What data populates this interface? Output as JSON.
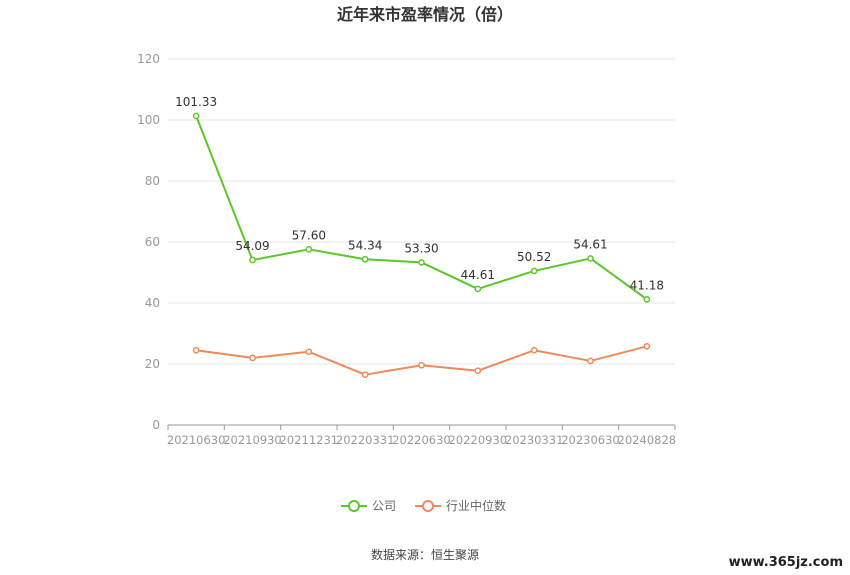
{
  "chart_data": {
    "type": "line",
    "title": "近年来市盈率情况（倍）",
    "categories": [
      "20210630",
      "20210930",
      "20211231",
      "20220331",
      "20220630",
      "20220930",
      "20230331",
      "20230630",
      "20240828"
    ],
    "ylim": [
      0,
      120
    ],
    "yticks": [
      0,
      20,
      40,
      60,
      80,
      100,
      120
    ],
    "grid": true,
    "legend": "bottom-center",
    "series": [
      {
        "name": "公司",
        "color": "#5ac72a",
        "values": [
          101.33,
          54.09,
          57.6,
          54.34,
          53.3,
          44.61,
          50.52,
          54.61,
          41.18
        ],
        "labels": [
          "101.33",
          "54.09",
          "57.60",
          "54.34",
          "53.30",
          "44.61",
          "50.52",
          "54.61",
          "41.18"
        ]
      },
      {
        "name": "行业中位数",
        "color": "#f08a5a",
        "values": [
          24.5,
          22.0,
          24.0,
          16.5,
          19.6,
          17.8,
          24.5,
          21.0,
          25.8
        ]
      }
    ]
  },
  "source": "数据来源：恒生聚源",
  "watermark": "www.365jz.com"
}
